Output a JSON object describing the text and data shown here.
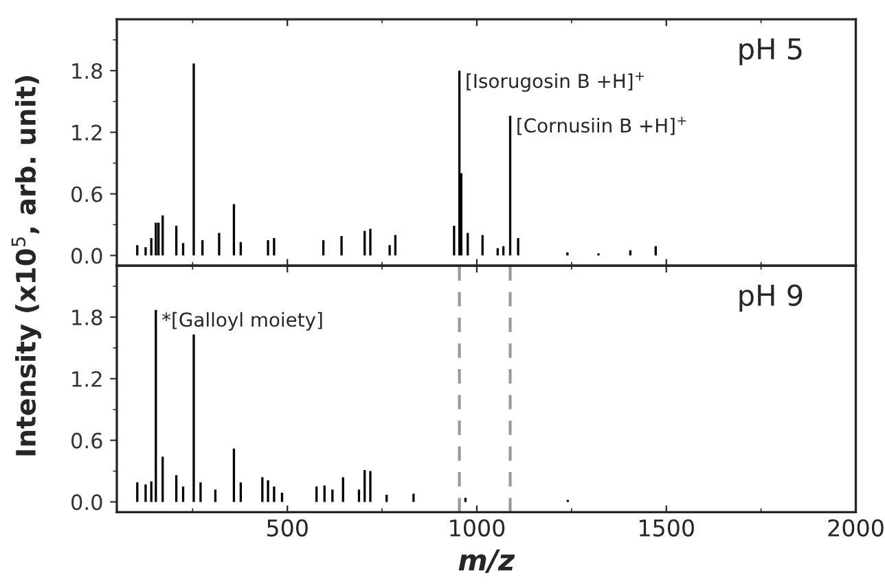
{
  "chart_data": [
    {
      "type": "bar",
      "ylabel": "Intensity (x10$^{5}$, arb. unit)",
      "color": "#000000",
      "x": [
        104,
        126,
        141,
        153,
        160,
        171,
        207,
        225,
        253,
        276,
        320,
        359,
        377,
        449,
        465,
        595,
        643,
        704,
        719,
        770,
        785,
        940,
        954,
        959,
        976,
        1015,
        1055,
        1070,
        1088,
        1109,
        1239,
        1321,
        1405,
        1472
      ],
      "values": [
        0.1,
        0.08,
        0.17,
        0.32,
        0.32,
        0.39,
        0.29,
        0.12,
        1.87,
        0.15,
        0.22,
        0.5,
        0.13,
        0.15,
        0.17,
        0.15,
        0.19,
        0.24,
        0.26,
        0.1,
        0.2,
        0.29,
        1.8,
        0.8,
        0.22,
        0.2,
        0.07,
        0.09,
        1.36,
        0.17,
        0.03,
        0.02,
        0.05,
        0.09
      ],
      "xlim": [
        50,
        2000
      ],
      "xticks": [
        500,
        1000,
        1500,
        2000
      ],
      "ylim": [
        -0.1,
        2.3
      ],
      "yticks": [
        {
          "value": 0,
          "label": "0.0"
        },
        0.6,
        1.2,
        1.8
      ],
      "tick_labels": "y",
      "annotations": [
        {
          "text": "[Isorugosin B +H]$^{+}$",
          "x": 954,
          "y": 1.8
        },
        {
          "text": "[Cornusiin B +H]$^{+}$",
          "x": 1088,
          "y": 1.36
        },
        "pH 5"
      ]
    },
    {
      "type": "bar",
      "xlabel": "m/z",
      "color": "#000000",
      "x": [
        104,
        126,
        141,
        153,
        171,
        207,
        225,
        253,
        271,
        310,
        359,
        377,
        434,
        449,
        465,
        486,
        577,
        598,
        619,
        647,
        689,
        704,
        719,
        762,
        833,
        970,
        1240
      ],
      "values": [
        0.19,
        0.17,
        0.2,
        1.87,
        0.44,
        0.26,
        0.15,
        1.63,
        0.19,
        0.12,
        0.52,
        0.19,
        0.24,
        0.21,
        0.15,
        0.09,
        0.15,
        0.16,
        0.12,
        0.24,
        0.12,
        0.31,
        0.3,
        0.07,
        0.08,
        0.04,
        0.02
      ],
      "xlim": [
        50,
        2000
      ],
      "xticks": [
        500,
        1000,
        1500,
        2000
      ],
      "ylim": [
        -0.1,
        2.3
      ],
      "yticks": [
        {
          "value": 0,
          "label": "0.0"
        },
        0.6,
        1.2,
        1.8
      ],
      "ref_lines": [
        {
          "axis": "x",
          "value": 954,
          "color": "#999999",
          "line_style": "dashed"
        },
        {
          "axis": "x",
          "value": 1088,
          "color": "#999999",
          "line_style": "dashed"
        }
      ],
      "annotations": [
        {
          "text": "*[Galloyl moiety]",
          "x": 153,
          "y": 1.87
        },
        "pH 9"
      ]
    }
  ]
}
